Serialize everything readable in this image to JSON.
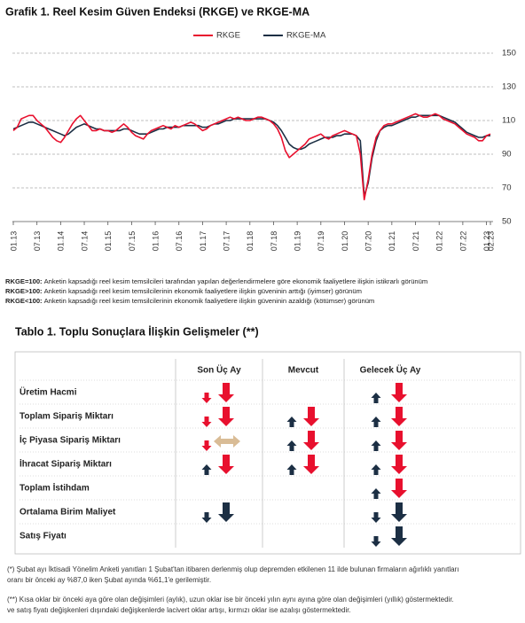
{
  "chart_data": {
    "type": "line",
    "title": "Grafik 1. Reel Kesim Güven Endeksi (RKGE) ve RKGE-MA",
    "categories": [
      "01.13",
      null,
      null,
      null,
      null,
      null,
      "07.13",
      null,
      null,
      null,
      null,
      null,
      "01.14",
      null,
      null,
      null,
      null,
      null,
      "07.14",
      null,
      null,
      null,
      null,
      null,
      "01.15",
      null,
      null,
      null,
      null,
      null,
      "07.15",
      null,
      null,
      null,
      null,
      null,
      "01.16",
      null,
      null,
      null,
      null,
      null,
      "07.16",
      null,
      null,
      null,
      null,
      null,
      "01.17",
      null,
      null,
      null,
      null,
      null,
      "07.17",
      null,
      null,
      null,
      null,
      null,
      "01.18",
      null,
      null,
      null,
      null,
      null,
      "07.18",
      null,
      null,
      null,
      null,
      null,
      "01.19",
      null,
      null,
      null,
      null,
      null,
      "07.19",
      null,
      null,
      null,
      null,
      null,
      "01.20",
      null,
      null,
      null,
      null,
      null,
      "07.20",
      null,
      null,
      null,
      null,
      null,
      "01.21",
      null,
      null,
      null,
      null,
      null,
      "07.21",
      null,
      null,
      null,
      null,
      null,
      "01.22",
      null,
      null,
      null,
      null,
      null,
      "07.22",
      null,
      null,
      null,
      null,
      null,
      "01.23",
      "02.23"
    ],
    "series": [
      {
        "name": "RKGE",
        "color": "#e8102e",
        "values": [
          104,
          106,
          111,
          112,
          113,
          113,
          110,
          108,
          106,
          103,
          100,
          98,
          97,
          100,
          104,
          108,
          111,
          113,
          110,
          107,
          104,
          104,
          105,
          104,
          104,
          103,
          104,
          106,
          108,
          106,
          103,
          101,
          100,
          99,
          102,
          104,
          105,
          106,
          107,
          106,
          105,
          107,
          106,
          107,
          108,
          109,
          108,
          106,
          104,
          105,
          107,
          108,
          109,
          110,
          111,
          112,
          111,
          112,
          111,
          110,
          110,
          111,
          112,
          112,
          111,
          110,
          108,
          105,
          100,
          92,
          88,
          90,
          92,
          94,
          96,
          99,
          100,
          101,
          102,
          100,
          99,
          101,
          102,
          103,
          104,
          103,
          102,
          101,
          90,
          63,
          75,
          90,
          100,
          104,
          107,
          108,
          108,
          109,
          110,
          111,
          112,
          113,
          114,
          113,
          112,
          112,
          113,
          114,
          113,
          111,
          110,
          109,
          108,
          106,
          104,
          102,
          101,
          100,
          98,
          98,
          101,
          102
        ]
      },
      {
        "name": "RKGE-MA",
        "color": "#1c2f44",
        "values": [
          105,
          106,
          107,
          108,
          109,
          109,
          108,
          107,
          106,
          105,
          104,
          103,
          102,
          101,
          102,
          104,
          106,
          107,
          108,
          107,
          106,
          105,
          105,
          104,
          104,
          104,
          104,
          104,
          105,
          105,
          104,
          103,
          102,
          102,
          102,
          103,
          104,
          105,
          105,
          106,
          106,
          106,
          106,
          107,
          107,
          107,
          107,
          107,
          106,
          106,
          107,
          108,
          108,
          109,
          110,
          110,
          111,
          111,
          111,
          111,
          111,
          111,
          111,
          111,
          111,
          110,
          109,
          107,
          104,
          100,
          96,
          94,
          93,
          93,
          94,
          96,
          97,
          98,
          99,
          100,
          100,
          100,
          101,
          101,
          102,
          102,
          102,
          101,
          98,
          65,
          73,
          88,
          98,
          104,
          106,
          107,
          107,
          108,
          109,
          110,
          111,
          112,
          112,
          113,
          113,
          113,
          113,
          113,
          113,
          112,
          111,
          110,
          109,
          107,
          105,
          103,
          102,
          101,
          100,
          100,
          101,
          101
        ]
      }
    ],
    "ylim": [
      50,
      150
    ],
    "yticks": [
      50,
      70,
      90,
      110,
      130,
      150
    ],
    "grid": true,
    "legend": "top"
  },
  "notes": [
    {
      "term": "RKGE=100:",
      "text": "Anketin kapsadığı reel kesim temsilcileri tarafından yapılan değerlendirmelere göre ekonomik faaliyetlere ilişkin istikrarlı görünüm"
    },
    {
      "term": "RKGE>100:",
      "text": "Anketin kapsadığı reel kesim temsilcilerinin ekonomik faaliyetlere ilişkin güveninin arttığı (iyimser) görünüm"
    },
    {
      "term": "RKGE<100:",
      "text": "Anketin kapsadığı reel kesim temsilcilerinin ekonomik faaliyetlere ilişkin güveninin azaldığı (kötümser) görünüm"
    }
  ],
  "table": {
    "title": "Tablo 1. Toplu Sonuçlara İlişkin Gelişmeler (**)",
    "columns": [
      "Son Üç Ay",
      "Mevcut",
      "Gelecek Üç Ay"
    ],
    "rows": [
      "Üretim Hacmi",
      "Toplam Sipariş Miktarı",
      "İç Piyasa Sipariş Miktarı",
      "İhracat Sipariş Miktarı",
      "Toplam İstihdam",
      "Ortalama Birim Maliyet",
      "Satış Fiyatı"
    ]
  },
  "footnotes": [
    "(*) Şubat ayı İktisadi Yönelim Anketi yanıtları 1 Şubat'tan itibaren derlenmiş olup depremden etkilenen 11 ilde bulunan firmaların ağırlıklı yanıtları",
    "oranı bir önceki ay %87,0 iken Şubat ayında %61,1'e gerilemiştir.",
    "(**)  Kısa oklar bir önceki aya göre olan değişimleri (aylık), uzun oklar ise bir önceki yılın aynı ayına göre olan değişimleri (yıllık) göstermektedir.",
    "ve satış fiyatı değişkenleri dışındaki değişkenlerde lacivert oklar artışı, kırmızı oklar ise azalışı göstermektedir."
  ]
}
